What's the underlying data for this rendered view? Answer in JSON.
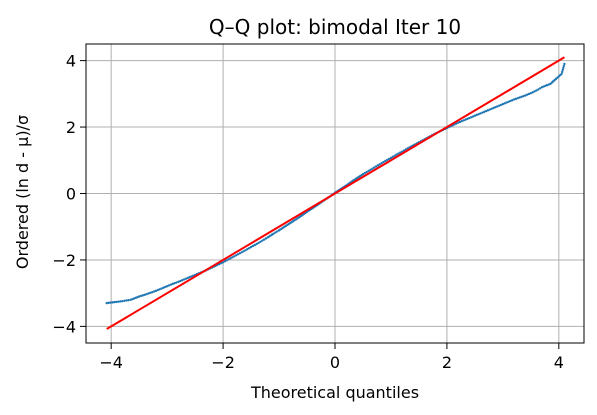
{
  "chart_data": {
    "type": "scatter",
    "title": "Q–Q plot: bimodal Iter 10",
    "xlabel": "Theoretical quantiles",
    "ylabel": "Ordered (ln d - μ)/σ",
    "xlim": [
      -4.45,
      4.45
    ],
    "ylim": [
      -4.5,
      4.5
    ],
    "xticks": [
      {
        "value": -4,
        "label": "−4"
      },
      {
        "value": -2,
        "label": "−2"
      },
      {
        "value": 0,
        "label": "0"
      },
      {
        "value": 2,
        "label": "2"
      },
      {
        "value": 4,
        "label": "4"
      }
    ],
    "yticks": [
      {
        "value": -4,
        "label": "−4"
      },
      {
        "value": -2,
        "label": "−2"
      },
      {
        "value": 0,
        "label": "0"
      },
      {
        "value": 2,
        "label": "2"
      },
      {
        "value": 4,
        "label": "4"
      }
    ],
    "grid": true,
    "series": [
      {
        "color": "#1f77b4",
        "points": [
          [
            -4.08,
            -3.3
          ],
          [
            -3.8,
            -3.24
          ],
          [
            -3.65,
            -3.2
          ],
          [
            -3.5,
            -3.1
          ],
          [
            -3.4,
            -3.05
          ],
          [
            -3.3,
            -2.99
          ],
          [
            -3.2,
            -2.93
          ],
          [
            -3.1,
            -2.86
          ],
          [
            -3.0,
            -2.79
          ],
          [
            -2.9,
            -2.72
          ],
          [
            -2.8,
            -2.66
          ],
          [
            -2.7,
            -2.59
          ],
          [
            -2.6,
            -2.52
          ],
          [
            -2.5,
            -2.45
          ],
          [
            -2.4,
            -2.38
          ],
          [
            -2.3,
            -2.31
          ],
          [
            -2.2,
            -2.23
          ],
          [
            -2.1,
            -2.15
          ],
          [
            -2.0,
            -2.07
          ],
          [
            -1.9,
            -1.98
          ],
          [
            -1.8,
            -1.89
          ],
          [
            -1.7,
            -1.8
          ],
          [
            -1.6,
            -1.71
          ],
          [
            -1.5,
            -1.61
          ],
          [
            -1.4,
            -1.52
          ],
          [
            -1.3,
            -1.42
          ],
          [
            -1.2,
            -1.32
          ],
          [
            -1.1,
            -1.21
          ],
          [
            -1.0,
            -1.11
          ],
          [
            -0.9,
            -1.0
          ],
          [
            -0.8,
            -0.89
          ],
          [
            -0.7,
            -0.78
          ],
          [
            -0.6,
            -0.67
          ],
          [
            -0.5,
            -0.55
          ],
          [
            -0.4,
            -0.44
          ],
          [
            -0.3,
            -0.33
          ],
          [
            -0.2,
            -0.21
          ],
          [
            -0.1,
            -0.1
          ],
          [
            0.0,
            0.02
          ],
          [
            0.1,
            0.13
          ],
          [
            0.2,
            0.24
          ],
          [
            0.3,
            0.36
          ],
          [
            0.4,
            0.47
          ],
          [
            0.5,
            0.58
          ],
          [
            0.6,
            0.68
          ],
          [
            0.7,
            0.78
          ],
          [
            0.8,
            0.88
          ],
          [
            0.9,
            0.98
          ],
          [
            1.0,
            1.07
          ],
          [
            1.1,
            1.17
          ],
          [
            1.2,
            1.26
          ],
          [
            1.3,
            1.36
          ],
          [
            1.4,
            1.45
          ],
          [
            1.5,
            1.54
          ],
          [
            1.6,
            1.63
          ],
          [
            1.7,
            1.72
          ],
          [
            1.8,
            1.81
          ],
          [
            1.9,
            1.89
          ],
          [
            2.0,
            1.97
          ],
          [
            2.1,
            2.05
          ],
          [
            2.2,
            2.13
          ],
          [
            2.3,
            2.2
          ],
          [
            2.4,
            2.27
          ],
          [
            2.5,
            2.34
          ],
          [
            2.6,
            2.41
          ],
          [
            2.7,
            2.48
          ],
          [
            2.8,
            2.55
          ],
          [
            2.9,
            2.62
          ],
          [
            3.0,
            2.69
          ],
          [
            3.1,
            2.76
          ],
          [
            3.2,
            2.83
          ],
          [
            3.3,
            2.89
          ],
          [
            3.4,
            2.95
          ],
          [
            3.5,
            3.02
          ],
          [
            3.6,
            3.1
          ],
          [
            3.7,
            3.2
          ],
          [
            3.85,
            3.3
          ],
          [
            3.95,
            3.45
          ],
          [
            4.05,
            3.6
          ],
          [
            4.1,
            3.9
          ]
        ]
      }
    ],
    "reference_line": {
      "color": "#ff0000",
      "x": [
        -4.08,
        4.1
      ],
      "y": [
        -4.08,
        4.1
      ]
    }
  }
}
